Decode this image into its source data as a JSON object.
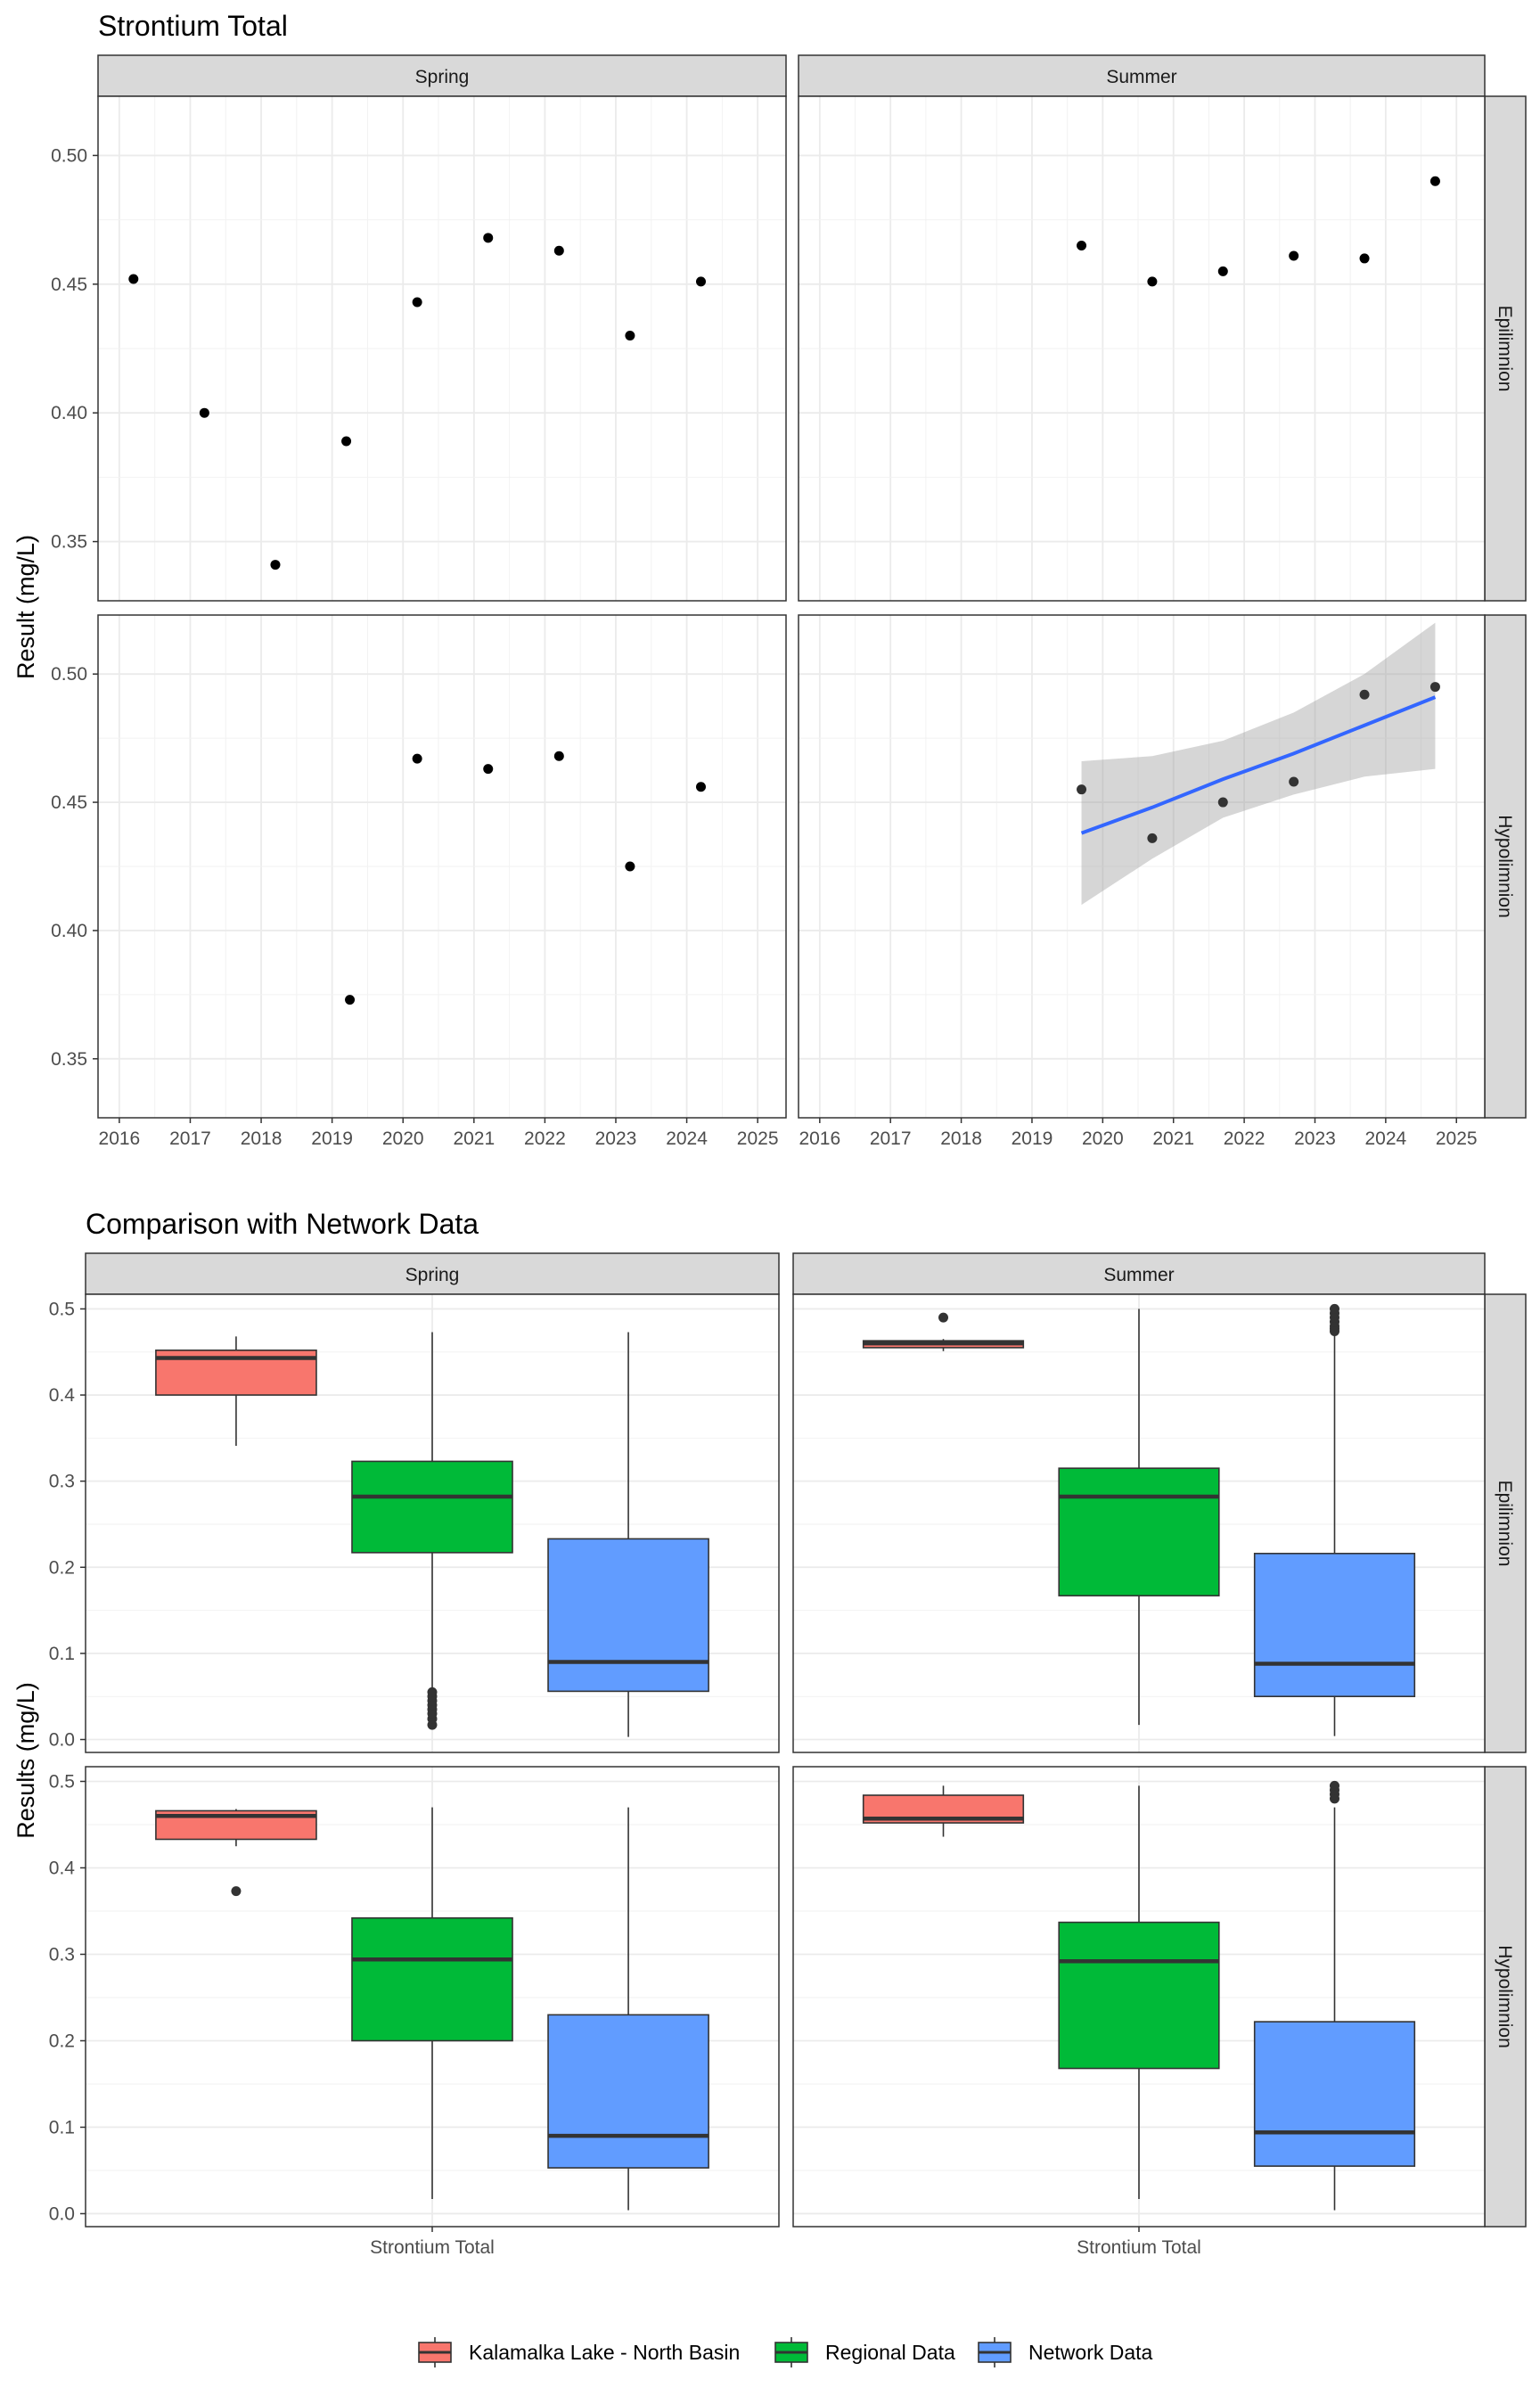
{
  "chart_data": [
    {
      "type": "scatter",
      "title": "Strontium Total",
      "ylabel": "Result (mg/L)",
      "xlabel": "",
      "xlim": [
        2015.7,
        2025.4
      ],
      "ylim": [
        0.327,
        0.523
      ],
      "x_ticks": [
        2016,
        2017,
        2018,
        2019,
        2020,
        2021,
        2022,
        2023,
        2024,
        2025
      ],
      "y_ticks": [
        0.35,
        0.4,
        0.45,
        0.5
      ],
      "y_tick_labels": [
        "0.35",
        "0.40",
        "0.45",
        "0.50"
      ],
      "grid": true,
      "column_facets": [
        "Spring",
        "Summer"
      ],
      "row_facets": [
        "Epilimnion",
        "Hypolimnion"
      ],
      "panels": [
        {
          "col": "Spring",
          "row": "Epilimnion",
          "points": [
            [
              2016.2,
              0.452
            ],
            [
              2017.2,
              0.4
            ],
            [
              2018.2,
              0.341
            ],
            [
              2019.2,
              0.389
            ],
            [
              2020.2,
              0.443
            ],
            [
              2021.2,
              0.468
            ],
            [
              2022.2,
              0.463
            ],
            [
              2023.2,
              0.43
            ],
            [
              2024.2,
              0.451
            ]
          ]
        },
        {
          "col": "Summer",
          "row": "Epilimnion",
          "points": [
            [
              2019.7,
              0.465
            ],
            [
              2020.7,
              0.451
            ],
            [
              2021.7,
              0.455
            ],
            [
              2022.7,
              0.461
            ],
            [
              2023.7,
              0.46
            ],
            [
              2024.7,
              0.49
            ]
          ]
        },
        {
          "col": "Spring",
          "row": "Hypolimnion",
          "points": [
            [
              2019.25,
              0.373
            ],
            [
              2020.2,
              0.467
            ],
            [
              2021.2,
              0.463
            ],
            [
              2022.2,
              0.468
            ],
            [
              2023.2,
              0.425
            ],
            [
              2024.2,
              0.456
            ]
          ]
        },
        {
          "col": "Summer",
          "row": "Hypolimnion",
          "points": [
            [
              2019.7,
              0.455
            ],
            [
              2020.7,
              0.436
            ],
            [
              2021.7,
              0.45
            ],
            [
              2022.7,
              0.458
            ],
            [
              2023.7,
              0.492
            ],
            [
              2024.7,
              0.495
            ]
          ],
          "trend": {
            "x": [
              2019.7,
              2020.7,
              2021.7,
              2022.7,
              2023.7,
              2024.7
            ],
            "fit": [
              0.438,
              0.448,
              0.459,
              0.469,
              0.48,
              0.491
            ],
            "lower": [
              0.41,
              0.428,
              0.444,
              0.453,
              0.46,
              0.463
            ],
            "upper": [
              0.466,
              0.468,
              0.474,
              0.485,
              0.5,
              0.52
            ],
            "color": "#3366ff",
            "band_color": "#999999"
          }
        }
      ]
    },
    {
      "type": "box",
      "title": "Comparison with Network Data",
      "ylabel": "Results (mg/L)",
      "xlabel": "",
      "categories": [
        "Strontium Total"
      ],
      "ylim": [
        -0.015,
        0.517
      ],
      "y_ticks": [
        0.0,
        0.1,
        0.2,
        0.3,
        0.4,
        0.5
      ],
      "y_tick_labels": [
        "0.0",
        "0.1",
        "0.2",
        "0.3",
        "0.4",
        "0.5"
      ],
      "grid": true,
      "column_facets": [
        "Spring",
        "Summer"
      ],
      "row_facets": [
        "Epilimnion",
        "Hypolimnion"
      ],
      "legend": {
        "position": "bottom",
        "items": [
          {
            "name": "Kalamalka Lake - North Basin",
            "color": "#f8766d"
          },
          {
            "name": "Regional Data",
            "color": "#00ba38"
          },
          {
            "name": "Network Data",
            "color": "#619cff"
          }
        ]
      },
      "panels": [
        {
          "col": "Spring",
          "row": "Epilimnion",
          "boxes": [
            {
              "group": "Kalamalka Lake - North Basin",
              "min": 0.341,
              "q1": 0.4,
              "median": 0.443,
              "q3": 0.452,
              "max": 0.468,
              "outliers": []
            },
            {
              "group": "Regional Data",
              "min": 0.06,
              "q1": 0.217,
              "median": 0.282,
              "q3": 0.323,
              "max": 0.473,
              "outliers": [
                0.017,
                0.024,
                0.03,
                0.035,
                0.04,
                0.045,
                0.05,
                0.055
              ]
            },
            {
              "group": "Network Data",
              "min": 0.003,
              "q1": 0.056,
              "median": 0.09,
              "q3": 0.233,
              "max": 0.473,
              "outliers": []
            }
          ]
        },
        {
          "col": "Summer",
          "row": "Epilimnion",
          "boxes": [
            {
              "group": "Kalamalka Lake - North Basin",
              "min": 0.451,
              "q1": 0.455,
              "median": 0.46,
              "q3": 0.463,
              "max": 0.465,
              "outliers": [
                0.49
              ]
            },
            {
              "group": "Regional Data",
              "min": 0.017,
              "q1": 0.167,
              "median": 0.282,
              "q3": 0.315,
              "max": 0.5,
              "outliers": []
            },
            {
              "group": "Network Data",
              "min": 0.004,
              "q1": 0.05,
              "median": 0.088,
              "q3": 0.216,
              "max": 0.47,
              "outliers": [
                0.474,
                0.477,
                0.48,
                0.485,
                0.49,
                0.495,
                0.5
              ]
            }
          ]
        },
        {
          "col": "Spring",
          "row": "Hypolimnion",
          "boxes": [
            {
              "group": "Kalamalka Lake - North Basin",
              "min": 0.425,
              "q1": 0.433,
              "median": 0.46,
              "q3": 0.466,
              "max": 0.468,
              "outliers": [
                0.373
              ]
            },
            {
              "group": "Regional Data",
              "min": 0.017,
              "q1": 0.2,
              "median": 0.294,
              "q3": 0.342,
              "max": 0.47,
              "outliers": []
            },
            {
              "group": "Network Data",
              "min": 0.004,
              "q1": 0.053,
              "median": 0.09,
              "q3": 0.23,
              "max": 0.47,
              "outliers": []
            }
          ]
        },
        {
          "col": "Summer",
          "row": "Hypolimnion",
          "boxes": [
            {
              "group": "Kalamalka Lake - North Basin",
              "min": 0.436,
              "q1": 0.452,
              "median": 0.457,
              "q3": 0.484,
              "max": 0.495,
              "outliers": []
            },
            {
              "group": "Regional Data",
              "min": 0.017,
              "q1": 0.168,
              "median": 0.292,
              "q3": 0.337,
              "max": 0.495,
              "outliers": []
            },
            {
              "group": "Network Data",
              "min": 0.004,
              "q1": 0.055,
              "median": 0.094,
              "q3": 0.222,
              "max": 0.47,
              "outliers": [
                0.48,
                0.485,
                0.49,
                0.495
              ]
            }
          ]
        }
      ]
    }
  ]
}
